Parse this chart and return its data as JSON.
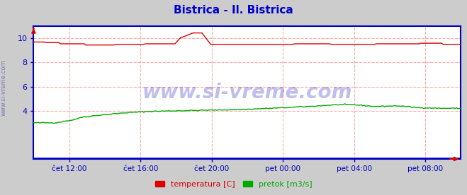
{
  "title": "Bistrica - Il. Bistrica",
  "title_color": "#0000cc",
  "title_fontsize": 11,
  "bg_color": "#cccccc",
  "plot_bg_color": "#ffffff",
  "grid_color": "#ffaaaa",
  "axis_color": "#0000bb",
  "tick_label_color": "#0000cc",
  "watermark_text": "www.si-vreme.com",
  "watermark_color": "#0000bb",
  "watermark_alpha": 0.25,
  "side_label_text": "www.si-vreme.com",
  "side_label_color": "#5555aa",
  "x_tick_labels": [
    "čet 12:00",
    "čet 16:00",
    "čet 20:00",
    "pet 00:00",
    "pet 04:00",
    "pet 08:00"
  ],
  "x_tick_positions": [
    0.0833,
    0.25,
    0.4167,
    0.5833,
    0.75,
    0.9167
  ],
  "ylim": [
    0,
    11
  ],
  "yticks": [
    4,
    6,
    8,
    10
  ],
  "temp_color": "#dd0000",
  "flow_color": "#00aa00",
  "height_color": "#0000cc",
  "legend_labels": [
    "temperatura [C]",
    "pretok [m3/s]"
  ],
  "legend_colors": [
    "#dd0000",
    "#00aa00"
  ],
  "n_points": 288
}
